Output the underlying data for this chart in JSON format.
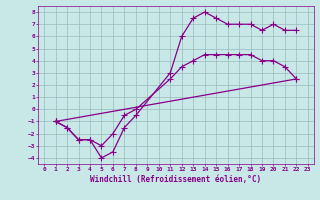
{
  "xlabel": "Windchill (Refroidissement éolien,°C)",
  "xlim": [
    -0.5,
    23.5
  ],
  "ylim": [
    -4.5,
    8.5
  ],
  "xticks": [
    0,
    1,
    2,
    3,
    4,
    5,
    6,
    7,
    8,
    9,
    10,
    11,
    12,
    13,
    14,
    15,
    16,
    17,
    18,
    19,
    20,
    21,
    22,
    23
  ],
  "yticks": [
    -4,
    -3,
    -2,
    -1,
    0,
    1,
    2,
    3,
    4,
    5,
    6,
    7,
    8
  ],
  "line_color": "#880088",
  "bg_color": "#c8e8e8",
  "grid_color": "#99bbbb",
  "line1_x": [
    1,
    2,
    3,
    4,
    5,
    6,
    7,
    8,
    11,
    12,
    13,
    14,
    15,
    16,
    17,
    18,
    19,
    20,
    21,
    22
  ],
  "line1_y": [
    -1,
    -1.5,
    -2.5,
    -2.5,
    -4,
    -3.5,
    -1.5,
    -0.5,
    3,
    6,
    7.5,
    8,
    7.5,
    7,
    7,
    7,
    6.5,
    7,
    6.5,
    6.5
  ],
  "line2_x": [
    1,
    2,
    3,
    4,
    5,
    6,
    7,
    8,
    11,
    12,
    13,
    14,
    15,
    16,
    17,
    18,
    19,
    20,
    21,
    22
  ],
  "line2_y": [
    -1,
    -1.5,
    -2.5,
    -2.5,
    -3,
    -2,
    -0.5,
    0,
    2.5,
    3.5,
    4,
    4.5,
    4.5,
    4.5,
    4.5,
    4.5,
    4,
    4,
    3.5,
    2.5
  ],
  "line3_x": [
    1,
    22
  ],
  "line3_y": [
    -1,
    2.5
  ],
  "marker": "+",
  "markersize": 4,
  "linewidth": 0.9,
  "tick_fontsize": 4.5,
  "label_fontsize": 5.5,
  "font_family": "monospace"
}
